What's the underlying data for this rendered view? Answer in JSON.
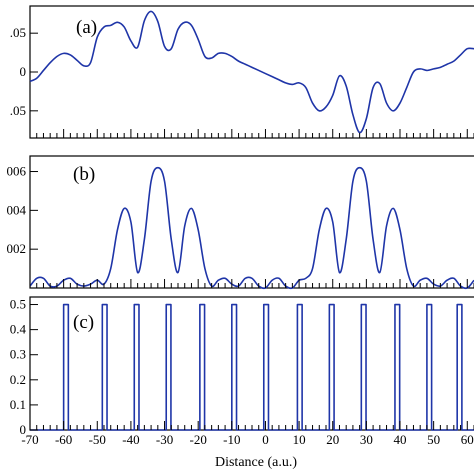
{
  "chart_data": [
    {
      "type": "line",
      "panel_label": "(a)",
      "xlim": [
        -70,
        62
      ],
      "ylim": [
        -0.085,
        0.085
      ],
      "yticks": [
        0.05,
        0,
        -0.05
      ],
      "ytick_labels": [
        ".05",
        "0",
        ".05"
      ],
      "series": [
        {
          "color": "#1f35a8",
          "x": [
            -70,
            -68,
            -66,
            -64,
            -62,
            -60,
            -58,
            -56,
            -54,
            -52,
            -50,
            -48,
            -46,
            -44,
            -42,
            -40,
            -38,
            -36,
            -34,
            -32,
            -30,
            -28,
            -26,
            -24,
            -22,
            -20,
            -18,
            -16,
            -14,
            -12,
            -10,
            -8,
            -6,
            -4,
            -2,
            0,
            2,
            4,
            6,
            8,
            10,
            12,
            14,
            16,
            18,
            20,
            22,
            24,
            26,
            28,
            30,
            32,
            34,
            36,
            38,
            40,
            42,
            44,
            46,
            48,
            50,
            52,
            54,
            56,
            58,
            60,
            62
          ],
          "y": [
            -0.012,
            -0.008,
            0.002,
            0.012,
            0.02,
            0.024,
            0.022,
            0.015,
            0.008,
            0.012,
            0.045,
            0.058,
            0.06,
            0.064,
            0.058,
            0.04,
            0.032,
            0.066,
            0.078,
            0.065,
            0.033,
            0.03,
            0.055,
            0.064,
            0.06,
            0.042,
            0.02,
            0.018,
            0.024,
            0.024,
            0.02,
            0.014,
            0.01,
            0.006,
            0.002,
            -0.002,
            -0.006,
            -0.01,
            -0.014,
            -0.016,
            -0.014,
            -0.02,
            -0.04,
            -0.05,
            -0.045,
            -0.03,
            -0.005,
            -0.018,
            -0.055,
            -0.078,
            -0.06,
            -0.02,
            -0.015,
            -0.04,
            -0.05,
            -0.04,
            -0.02,
            0.0,
            0.004,
            0.002,
            0.004,
            0.006,
            0.01,
            0.014,
            0.022,
            0.03,
            0.03
          ]
        }
      ]
    },
    {
      "type": "line",
      "panel_label": "(b)",
      "xlim": [
        -70,
        62
      ],
      "ylim": [
        0,
        0.0068
      ],
      "yticks": [
        0.006,
        0.004,
        0.002
      ],
      "ytick_labels": [
        "006",
        "004",
        "002"
      ],
      "series": [
        {
          "color": "#1f35a8",
          "x": [
            -70,
            -68,
            -66,
            -64,
            -62,
            -60,
            -58,
            -56,
            -54,
            -52,
            -50,
            -48,
            -46,
            -44,
            -42,
            -40,
            -38,
            -36,
            -34,
            -32,
            -30,
            -28,
            -26,
            -24,
            -22,
            -20,
            -18,
            -16,
            -14,
            -12,
            -10,
            -8,
            -6,
            -4,
            -2,
            0,
            2,
            4,
            6,
            8,
            10,
            12,
            14,
            16,
            18,
            20,
            22,
            24,
            26,
            28,
            30,
            32,
            34,
            36,
            38,
            40,
            42,
            44,
            46,
            48,
            50,
            52,
            54,
            56,
            58,
            60,
            62
          ],
          "y": [
            0.0001,
            0.0005,
            0.0005,
            0.0001,
            0.0001,
            0.0004,
            0.0005,
            0.0002,
            0.0001,
            0.0002,
            0.0004,
            0.0002,
            0.001,
            0.003,
            0.0041,
            0.0034,
            0.0008,
            0.0025,
            0.0055,
            0.0062,
            0.0055,
            0.0025,
            0.0008,
            0.0032,
            0.0041,
            0.003,
            0.001,
            0.0001,
            0.0004,
            0.0005,
            0.0002,
            0.0001,
            0.0005,
            0.0005,
            0.0001,
            0.0,
            0.0004,
            0.0005,
            0.0001,
            0.0,
            0.0004,
            0.0005,
            0.001,
            0.003,
            0.0041,
            0.0034,
            0.0008,
            0.0025,
            0.0055,
            0.0062,
            0.0055,
            0.0025,
            0.0008,
            0.0032,
            0.0041,
            0.003,
            0.001,
            0.0001,
            0.0004,
            0.0005,
            0.0002,
            0.0001,
            0.0004,
            0.0005,
            0.0001,
            0.0,
            0.0004
          ]
        }
      ]
    },
    {
      "type": "line",
      "panel_label": "(c)",
      "xlim": [
        -70,
        62
      ],
      "ylim": [
        0,
        0.53
      ],
      "yticks": [
        0.5,
        0.4,
        0.3,
        0.2,
        0.1,
        0
      ],
      "ytick_labels": [
        "0.5",
        "0.4",
        "0.3",
        "0.2",
        "0.1",
        "0"
      ],
      "xticks": [
        -70,
        -60,
        -50,
        -40,
        -30,
        -20,
        -10,
        0,
        10,
        20,
        30,
        40,
        50,
        60
      ],
      "xtick_labels": [
        "-70",
        "-60",
        "-50",
        "-40",
        "-30",
        "-20",
        "-10",
        "0",
        "10",
        "20",
        "30",
        "40",
        "50",
        "60"
      ],
      "xlabel": "Distance (a.u.)",
      "series": [
        {
          "color": "#1f35a8",
          "pulse_height": 0.5,
          "pulse_width": 1.4,
          "pulse_starts": [
            -60,
            -48.5,
            -39,
            -29.5,
            -19.5,
            -10,
            -0.5,
            9.5,
            19,
            28.5,
            38.5,
            48,
            57
          ]
        }
      ]
    }
  ]
}
